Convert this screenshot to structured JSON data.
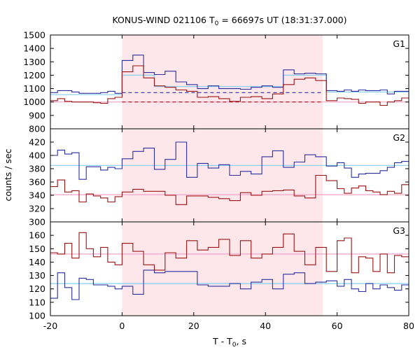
{
  "chart_data": {
    "type": "line",
    "title": "KONUS-WIND 021106 T",
    "title_sub": "0",
    "title_suffix": " = 66697s UT (18:31:37.000)",
    "xlabel": "T - T",
    "xlabel_sub": "0",
    "xlabel_suffix": ", s",
    "ylabel": "counts / sec",
    "xlim": [
      -20,
      80
    ],
    "xticks": [
      "-20",
      "0",
      "20",
      "40",
      "60",
      "80"
    ],
    "shaded_interval": [
      0,
      56
    ],
    "colors": {
      "blue": "#2b2fa0",
      "red": "#9a1414",
      "cyan": "#87cef0",
      "pink": "#f5a3c7",
      "shade": "#fde7ea"
    },
    "panels": [
      {
        "label": "G1",
        "ylim": [
          800,
          1500
        ],
        "yticks": [
          "800",
          "900",
          "1000",
          "1100",
          "1200",
          "1300",
          "1400",
          "1500"
        ],
        "edges": [
          -20,
          -18,
          -16,
          -14,
          -12,
          -10,
          -8,
          -6,
          -4,
          -2,
          0,
          3,
          6,
          9,
          12,
          15,
          18,
          21,
          24,
          27,
          30,
          33,
          36,
          39,
          42,
          45,
          48,
          51,
          54,
          57,
          60,
          62,
          64,
          66,
          68,
          70,
          72,
          74,
          76,
          78,
          80
        ],
        "series": [
          {
            "color": "blue",
            "values": [
              1070,
              1085,
              1085,
              1075,
              1065,
              1065,
              1065,
              1070,
              1080,
              1065,
              1310,
              1350,
              1220,
              1205,
              1230,
              1150,
              1130,
              1100,
              1120,
              1100,
              1100,
              1095,
              1110,
              1120,
              1110,
              1240,
              1210,
              1215,
              1210,
              1085,
              1080,
              1090,
              1080,
              1090,
              1085,
              1085,
              1090,
              1060,
              1080,
              1080
            ]
          },
          {
            "color": "red",
            "values": [
              1010,
              1025,
              1005,
              1000,
              1000,
              1000,
              995,
              990,
              1025,
              1035,
              1225,
              1270,
              1180,
              1120,
              1110,
              1090,
              1080,
              1035,
              1040,
              1025,
              1005,
              1035,
              1040,
              1025,
              1060,
              1130,
              1170,
              1180,
              1160,
              1010,
              1030,
              1025,
              1020,
              990,
              1000,
              1000,
              975,
              1000,
              1010,
              1030
            ]
          },
          {
            "color": "cyan",
            "values": [
              1055,
              1055,
              1055,
              1055,
              1055,
              1055,
              1055,
              1055,
              1055,
              1055,
              1200,
              1200,
              1200,
              1115,
              1115,
              1115,
              1115,
              1115,
              1115,
              1115,
              1115,
              1115,
              1115,
              1115,
              1115,
              1200,
              1200,
              1200,
              1200,
              1075,
              1075,
              1075,
              1075,
              1075,
              1075,
              1075,
              1075,
              1075,
              1075,
              1075
            ]
          },
          {
            "color": "pink",
            "values": [
              1000,
              1000,
              1000,
              1000,
              1000,
              1000,
              1000,
              1000,
              1000,
              1000,
              1000,
              1000,
              1000,
              1000,
              1000,
              1000,
              1000,
              1000,
              1000,
              1000,
              1000,
              1000,
              1000,
              1000,
              1000,
              1000,
              1000,
              1000,
              1000,
              1000,
              1000,
              1000,
              1000,
              1000,
              1000,
              1000,
              1000,
              1000,
              1000,
              1000
            ]
          }
        ],
        "dashed": [
          {
            "color": "blue",
            "value": 1070,
            "range": [
              0,
              56
            ]
          },
          {
            "color": "red",
            "value": 1000,
            "range": [
              0,
              56
            ]
          }
        ]
      },
      {
        "label": "G2",
        "ylim": [
          300,
          440
        ],
        "yticks": [
          "300",
          "320",
          "340",
          "360",
          "380",
          "400",
          "420"
        ],
        "edges": [
          -20,
          -18,
          -16,
          -14,
          -12,
          -10,
          -8,
          -6,
          -4,
          -2,
          0,
          3,
          6,
          9,
          12,
          15,
          18,
          21,
          24,
          27,
          30,
          33,
          36,
          39,
          42,
          45,
          48,
          51,
          54,
          57,
          60,
          62,
          64,
          66,
          68,
          70,
          72,
          74,
          76,
          78,
          80
        ],
        "series": [
          {
            "color": "blue",
            "values": [
              400,
              408,
              402,
              404,
              364,
              383,
              383,
              378,
              382,
              380,
              395,
              406,
              411,
              379,
              394,
              420,
              367,
              388,
              381,
              386,
              370,
              376,
              372,
              398,
              407,
              382,
              390,
              401,
              398,
              384,
              389,
              381,
              367,
              372,
              373,
              373,
              377,
              382,
              389,
              391
            ]
          },
          {
            "color": "red",
            "values": [
              353,
              363,
              345,
              347,
              330,
              342,
              339,
              336,
              330,
              338,
              345,
              349,
              346,
              346,
              340,
              326,
              339,
              339,
              337,
              335,
              332,
              344,
              340,
              346,
              347,
              348,
              339,
              336,
              370,
              362,
              350,
              343,
              351,
              354,
              347,
              345,
              341,
              346,
              343,
              356
            ]
          },
          {
            "color": "cyan",
            "values": [
              385,
              385,
              385,
              385,
              385,
              385,
              385,
              385,
              385,
              385,
              385,
              385,
              385,
              385,
              385,
              385,
              385,
              385,
              385,
              385,
              385,
              385,
              385,
              385,
              385,
              385,
              385,
              385,
              385,
              385,
              385,
              385,
              385,
              385,
              385,
              385,
              385,
              385,
              385,
              385
            ]
          },
          {
            "color": "pink",
            "values": [
              341,
              341,
              341,
              341,
              341,
              341,
              341,
              341,
              341,
              341,
              341,
              341,
              341,
              341,
              341,
              341,
              341,
              341,
              341,
              341,
              341,
              341,
              341,
              341,
              341,
              341,
              341,
              341,
              341,
              341,
              341,
              341,
              341,
              341,
              341,
              341,
              341,
              341,
              341,
              341
            ]
          }
        ],
        "dashed": []
      },
      {
        "label": "G3",
        "ylim": [
          100,
          170
        ],
        "yticks": [
          "100",
          "110",
          "120",
          "130",
          "140",
          "150",
          "160"
        ],
        "edges": [
          -20,
          -18,
          -16,
          -14,
          -12,
          -10,
          -8,
          -6,
          -4,
          -2,
          0,
          3,
          6,
          9,
          12,
          15,
          18,
          21,
          24,
          27,
          30,
          33,
          36,
          39,
          42,
          45,
          48,
          51,
          54,
          57,
          60,
          62,
          64,
          66,
          68,
          70,
          72,
          74,
          76,
          78,
          80
        ],
        "series": [
          {
            "color": "blue",
            "values": [
              113,
              132,
              121,
              112,
              128,
              127,
              123,
              123,
              122,
              120,
              122,
              116,
              134,
              132,
              133,
              133,
              133,
              123,
              122,
              122,
              124,
              120,
              125,
              127,
              120,
              131,
              132,
              124,
              125,
              126,
              122,
              127,
              120,
              118,
              124,
              120,
              123,
              121,
              119,
              123
            ]
          },
          {
            "color": "red",
            "values": [
              147,
              146,
              154,
              143,
              162,
              150,
              144,
              151,
              140,
              138,
              154,
              148,
              138,
              134,
              147,
              143,
              156,
              149,
              151,
              157,
              145,
              156,
              143,
              146,
              151,
              161,
              148,
              138,
              151,
              133,
              156,
              158,
              132,
              144,
              143,
              133,
              146,
              132,
              145,
              144
            ]
          },
          {
            "color": "cyan",
            "values": [
              124,
              124,
              124,
              124,
              124,
              124,
              124,
              124,
              124,
              124,
              124,
              124,
              124,
              124,
              124,
              124,
              124,
              124,
              124,
              124,
              124,
              124,
              124,
              124,
              124,
              124,
              124,
              124,
              124,
              124,
              124,
              124,
              124,
              124,
              124,
              124,
              124,
              124,
              124,
              124
            ]
          },
          {
            "color": "pink",
            "values": [
              146,
              146,
              146,
              146,
              146,
              146,
              146,
              146,
              146,
              146,
              146,
              146,
              146,
              146,
              146,
              146,
              146,
              146,
              146,
              146,
              146,
              146,
              146,
              146,
              146,
              146,
              146,
              146,
              146,
              146,
              146,
              146,
              146,
              146,
              146,
              146,
              146,
              146,
              146,
              146
            ]
          }
        ],
        "dashed": []
      }
    ]
  }
}
